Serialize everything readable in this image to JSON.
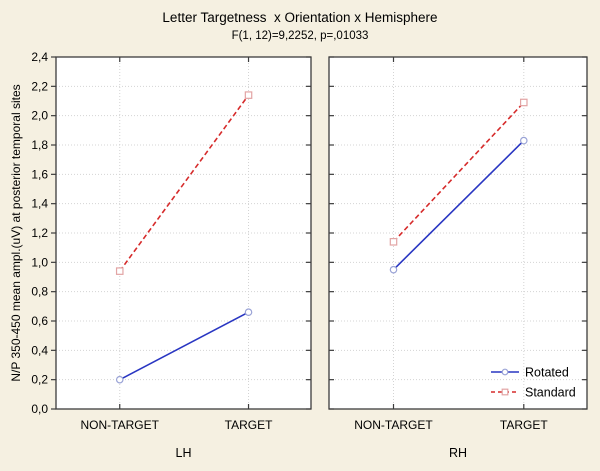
{
  "chart_data": {
    "type": "line",
    "title": "Letter Targetness  x Orientation x Hemisphere",
    "subtitle": "F(1, 12)=9,2252, p=,01033",
    "ylabel": "N/P 350-450 mean ampl.(uV) at posterior temporal sites",
    "ylim": [
      0,
      2.4
    ],
    "ytick_step": 0.2,
    "ytick_labels": [
      "0,0",
      "0,2",
      "0,4",
      "0,6",
      "0,8",
      "1,0",
      "1,2",
      "1,4",
      "1,6",
      "1,8",
      "2,0",
      "2,2",
      "2,4"
    ],
    "categories": [
      "NON-TARGET",
      "TARGET"
    ],
    "panels": [
      {
        "label": "LH",
        "series": [
          {
            "name": "Rotated",
            "values": [
              0.2,
              0.66
            ]
          },
          {
            "name": "Standard",
            "values": [
              0.94,
              2.14
            ]
          }
        ]
      },
      {
        "label": "RH",
        "series": [
          {
            "name": "Rotated",
            "values": [
              0.95,
              1.83
            ]
          },
          {
            "name": "Standard",
            "values": [
              1.14,
              2.09
            ]
          }
        ]
      }
    ],
    "legend": [
      {
        "label": "Rotated",
        "color": "#2936c2",
        "marker": "circle",
        "marker_color": "#9aa3d6",
        "line_style": "solid"
      },
      {
        "label": "Standard",
        "color": "#d62b2b",
        "marker": "square",
        "marker_color": "#e2a4a4",
        "line_style": "dashed"
      }
    ],
    "grid": true,
    "legend_position": "bottom-right",
    "colors": {
      "background": "#f5f0e1",
      "plot_bg": "#ffffff",
      "grid": "#d4d4d4",
      "border": "#3c3c3c",
      "text": "#000000"
    }
  }
}
